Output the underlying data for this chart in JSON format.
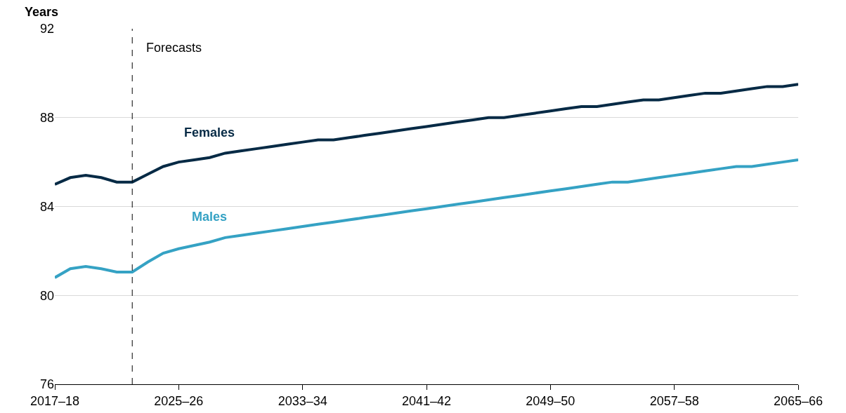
{
  "chart_data": {
    "type": "line",
    "ylabel": "Years",
    "categories": [
      "2017–18",
      null,
      null,
      null,
      null,
      null,
      null,
      null,
      "2025–26",
      null,
      null,
      null,
      null,
      null,
      null,
      null,
      "2033–34",
      null,
      null,
      null,
      null,
      null,
      null,
      null,
      "2041–42",
      null,
      null,
      null,
      null,
      null,
      null,
      null,
      "2049–50",
      null,
      null,
      null,
      null,
      null,
      null,
      null,
      "2057–58",
      null,
      null,
      null,
      null,
      null,
      null,
      null,
      "2065–66"
    ],
    "series": [
      {
        "name": "Females",
        "color": "#062a45",
        "values": [
          85.0,
          85.3,
          85.4,
          85.3,
          85.1,
          85.1,
          85.45,
          85.8,
          86.0,
          86.1,
          86.2,
          86.4,
          86.5,
          86.6,
          86.7,
          86.8,
          86.9,
          87.0,
          87.0,
          87.1,
          87.2,
          87.3,
          87.4,
          87.5,
          87.6,
          87.7,
          87.8,
          87.9,
          88.0,
          88.0,
          88.1,
          88.2,
          88.3,
          88.4,
          88.5,
          88.5,
          88.6,
          88.7,
          88.8,
          88.8,
          88.9,
          89.0,
          89.1,
          89.1,
          89.2,
          89.3,
          89.4,
          89.4,
          89.5
        ]
      },
      {
        "name": "Males",
        "color": "#35a2c4",
        "values": [
          80.8,
          81.2,
          81.3,
          81.2,
          81.05,
          81.05,
          81.5,
          81.9,
          82.1,
          82.25,
          82.4,
          82.6,
          82.7,
          82.8,
          82.9,
          83.0,
          83.1,
          83.2,
          83.3,
          83.4,
          83.5,
          83.6,
          83.7,
          83.8,
          83.9,
          84.0,
          84.1,
          84.2,
          84.3,
          84.4,
          84.5,
          84.6,
          84.7,
          84.8,
          84.9,
          85.0,
          85.1,
          85.1,
          85.2,
          85.3,
          85.4,
          85.5,
          85.6,
          85.7,
          85.8,
          85.8,
          85.9,
          86.0,
          86.1
        ]
      }
    ],
    "ylim": [
      76,
      92
    ],
    "yticks": [
      76,
      80,
      84,
      88,
      92
    ],
    "annotations": [
      "Forecasts"
    ],
    "grid": "y",
    "legend": false,
    "marker": "none",
    "line_style": "solid"
  }
}
